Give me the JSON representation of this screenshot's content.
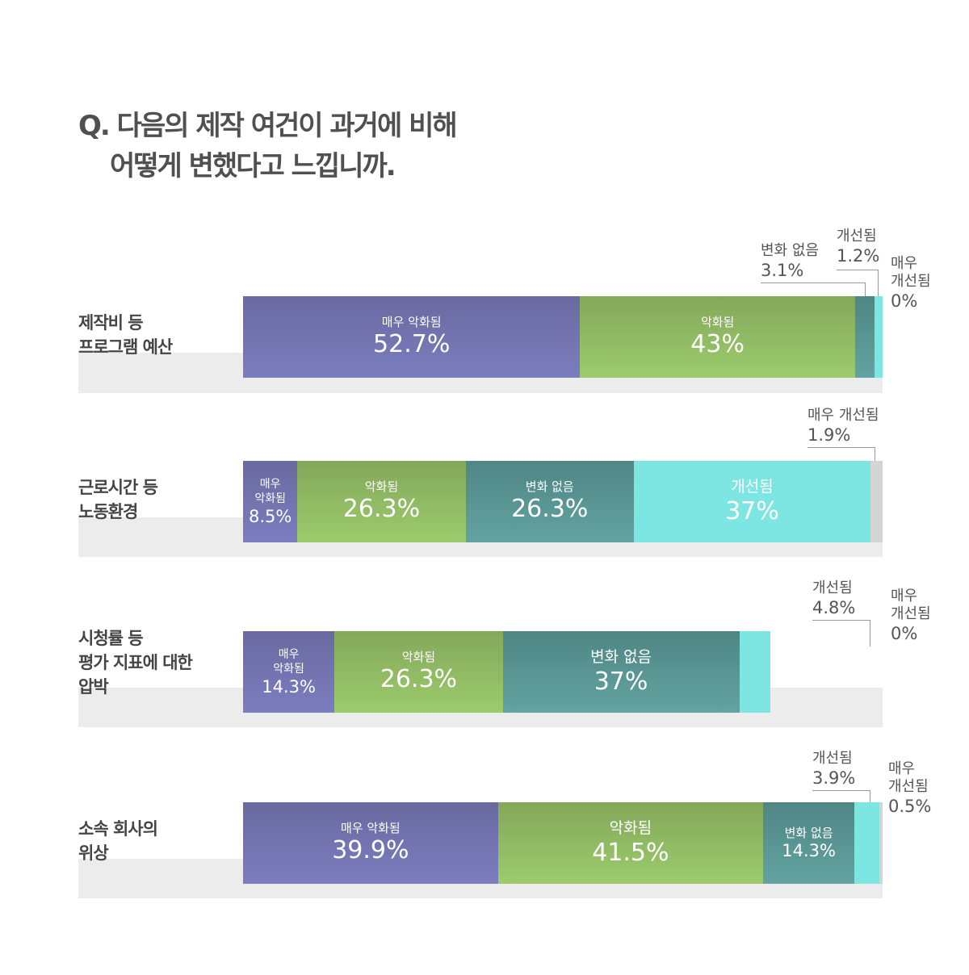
{
  "title": {
    "line1": "Q. 다음의 제작 여건이 과거에 비해",
    "line2": "어떻게 변했다고 느낍니까."
  },
  "chart_data": {
    "type": "bar",
    "orientation": "horizontal",
    "stacked": true,
    "unit": "%",
    "categories": [
      "매우 악화됨",
      "악화됨",
      "변화 없음",
      "개선됨",
      "매우 개선됨"
    ],
    "colors": {
      "매우 악화됨": "#7173ae",
      "악화됨": "#90b862",
      "변화 없음": "#579493",
      "개선됨": "#7fe4e0",
      "매우 개선됨": "#d4d4d4"
    },
    "rows": [
      {
        "label1": "제작비 등",
        "label2": "프로그램 예산",
        "label3": "",
        "values": [
          52.7,
          43,
          3.1,
          1.2,
          0
        ],
        "display": [
          "52.7%",
          "43%",
          "3.1%",
          "1.2%",
          "0%"
        ]
      },
      {
        "label1": "근로시간 등",
        "label2": "노동환경",
        "label3": "",
        "values": [
          8.5,
          26.3,
          26.3,
          37,
          1.9
        ],
        "display": [
          "8.5%",
          "26.3%",
          "26.3%",
          "37%",
          "1.9%"
        ]
      },
      {
        "label1": "시청률 등",
        "label2": "평가 지표에 대한",
        "label3": "압박",
        "values": [
          14.3,
          26.3,
          37,
          4.8,
          0
        ],
        "display": [
          "14.3%",
          "26.3%",
          "37%",
          "4.8%",
          "0%"
        ]
      },
      {
        "label1": "소속 회사의",
        "label2": "위상",
        "label3": "",
        "values": [
          39.9,
          41.5,
          14.3,
          3.9,
          0.5
        ],
        "display": [
          "39.9%",
          "41.5%",
          "14.3%",
          "3.9%",
          "0.5%"
        ]
      }
    ],
    "segment_labels": {
      "very_worse": "매우 악화됨",
      "very_worse_a": "매우",
      "very_worse_b": "악화됨",
      "worse": "악화됨",
      "same": "변화 없음",
      "better": "개선됨",
      "very_better": "매우 개선됨",
      "very_better_a": "매우",
      "very_better_b": "개선됨"
    }
  }
}
